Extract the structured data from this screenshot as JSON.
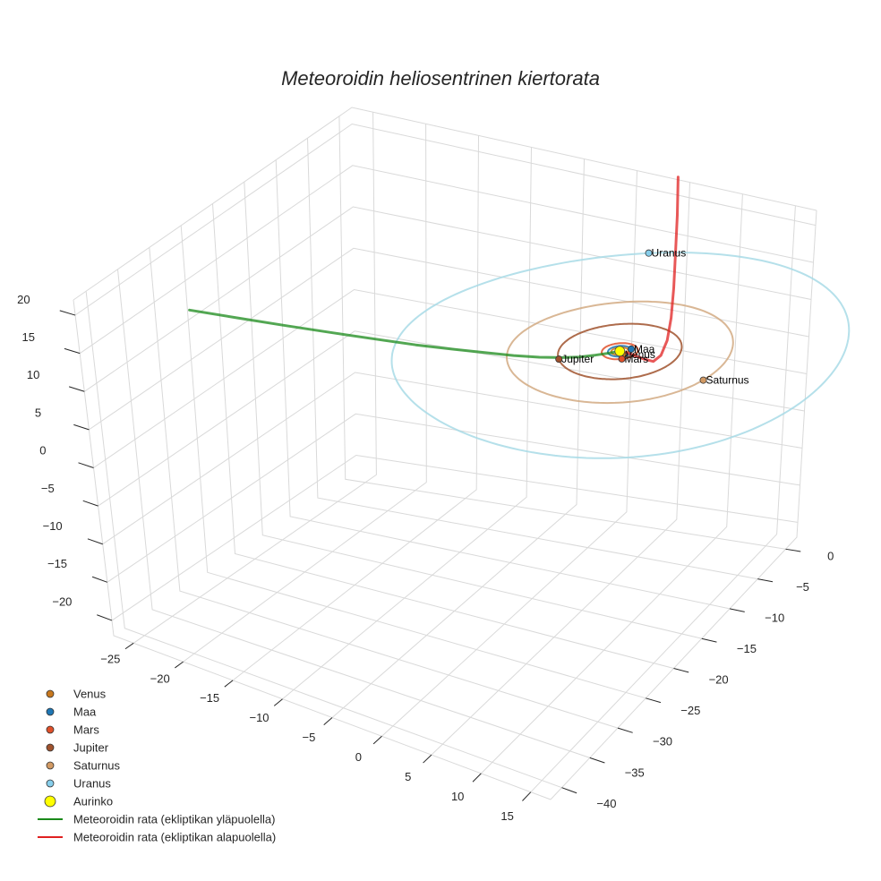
{
  "chart_data": {
    "type": "line3d",
    "title": "Meteoroidin heliosentrinen kiertorata",
    "xlabel": "",
    "ylabel": "",
    "zlabel": "",
    "axes": {
      "x": {
        "range": [
          -27,
          17
        ],
        "ticks": [
          -25,
          -20,
          -15,
          -10,
          -5,
          0,
          5,
          10,
          15
        ]
      },
      "y": {
        "range": [
          -42,
          2
        ],
        "ticks": [
          -40,
          -35,
          -30,
          -25,
          -20,
          -15,
          -10,
          -5,
          0
        ]
      },
      "z": {
        "range": [
          -22,
          22
        ],
        "ticks": [
          -20,
          -15,
          -10,
          -5,
          0,
          5,
          10,
          15,
          20
        ]
      }
    },
    "grid": true,
    "legend_position": "bottom-left",
    "planet_orbits": [
      {
        "name": "Venus",
        "radius": 0.72,
        "color": "#cc7a1a"
      },
      {
        "name": "Maa",
        "radius": 1.0,
        "color": "#1f77b4"
      },
      {
        "name": "Mars",
        "radius": 1.52,
        "color": "#e0502a"
      },
      {
        "name": "Jupiter",
        "radius": 5.2,
        "color": "#a0522d"
      },
      {
        "name": "Saturnus",
        "radius": 9.5,
        "color": "#d2aa82"
      },
      {
        "name": "Uranus",
        "radius": 19.2,
        "color": "#a8dae6"
      }
    ],
    "planets": [
      {
        "name": "Venus",
        "x": 0.55,
        "y": -0.45,
        "z": 0,
        "color": "#c8781e"
      },
      {
        "name": "Maa",
        "x": 0.7,
        "y": 0.7,
        "z": 0,
        "color": "#1f77b4"
      },
      {
        "name": "Mars",
        "x": 0.9,
        "y": -1.2,
        "z": 0,
        "color": "#e0502a"
      },
      {
        "name": "Jupiter",
        "x": -4.0,
        "y": -3.3,
        "z": 0,
        "color": "#a0522d"
      },
      {
        "name": "Saturnus",
        "x": 9.3,
        "y": -2.0,
        "z": 0,
        "color": "#d29a64"
      },
      {
        "name": "Uranus",
        "x": -7.5,
        "y": 17.7,
        "z": 0,
        "color": "#87ceeb"
      }
    ],
    "sun": {
      "name": "Aurinko",
      "x": 0,
      "y": 0,
      "z": 0,
      "color": "#ffff00"
    },
    "series": [
      {
        "name": "Meteoroidin rata (ekliptikan yläpuolella)",
        "color": "#1a8a1a",
        "x": [
          0,
          -0.4,
          -0.9,
          -1.5,
          -2.2,
          -3.2,
          -4.4,
          -5.8,
          -7.4,
          -9.2,
          -11.2,
          -13.4,
          -15.8,
          -18.2,
          -20.6
        ],
        "y": [
          0,
          -1.2,
          -2.6,
          -4.2,
          -5.9,
          -7.9,
          -10.1,
          -12.5,
          -15.1,
          -17.9,
          -20.9,
          -24.1,
          -27.5,
          -31.0,
          -34.5
        ],
        "z": [
          0,
          0.4,
          0.9,
          1.5,
          2.3,
          3.3,
          4.5,
          5.9,
          7.4,
          9.0,
          10.8,
          12.7,
          14.7,
          16.8,
          18.9
        ]
      },
      {
        "name": "Meteoroidin rata (ekliptikan alapuolella)",
        "color": "#e02020",
        "x": [
          0,
          0.4,
          0.9,
          1.5,
          2.2,
          2.8,
          3.3,
          3.6,
          3.8,
          3.9,
          4.0,
          4.0
        ],
        "y": [
          0,
          0.5,
          1.0,
          1.5,
          1.9,
          2.1,
          2.2,
          2.2,
          2.1,
          2.0,
          1.9,
          1.8
        ],
        "z": [
          0,
          -0.4,
          -1.0,
          -1.6,
          -2.0,
          -1.2,
          0.8,
          3.8,
          7.8,
          12.5,
          17.5,
          22.5
        ]
      }
    ]
  },
  "legend": {
    "items": [
      {
        "label": "Venus",
        "kind": "marker",
        "color": "#c8781e",
        "size": 4
      },
      {
        "label": "Maa",
        "kind": "marker",
        "color": "#1f77b4",
        "size": 4
      },
      {
        "label": "Mars",
        "kind": "marker",
        "color": "#e0502a",
        "size": 4
      },
      {
        "label": "Jupiter",
        "kind": "marker",
        "color": "#a0522d",
        "size": 4
      },
      {
        "label": "Saturnus",
        "kind": "marker",
        "color": "#d29a64",
        "size": 4
      },
      {
        "label": "Uranus",
        "kind": "marker",
        "color": "#87ceeb",
        "size": 4
      },
      {
        "label": "Aurinko",
        "kind": "marker",
        "color": "#ffff00",
        "size": 6
      },
      {
        "label": "Meteoroidin rata (ekliptikan yläpuolella)",
        "kind": "line",
        "color": "#1a8a1a"
      },
      {
        "label": "Meteoroidin rata (ekliptikan alapuolella)",
        "kind": "line",
        "color": "#e02020"
      }
    ]
  }
}
